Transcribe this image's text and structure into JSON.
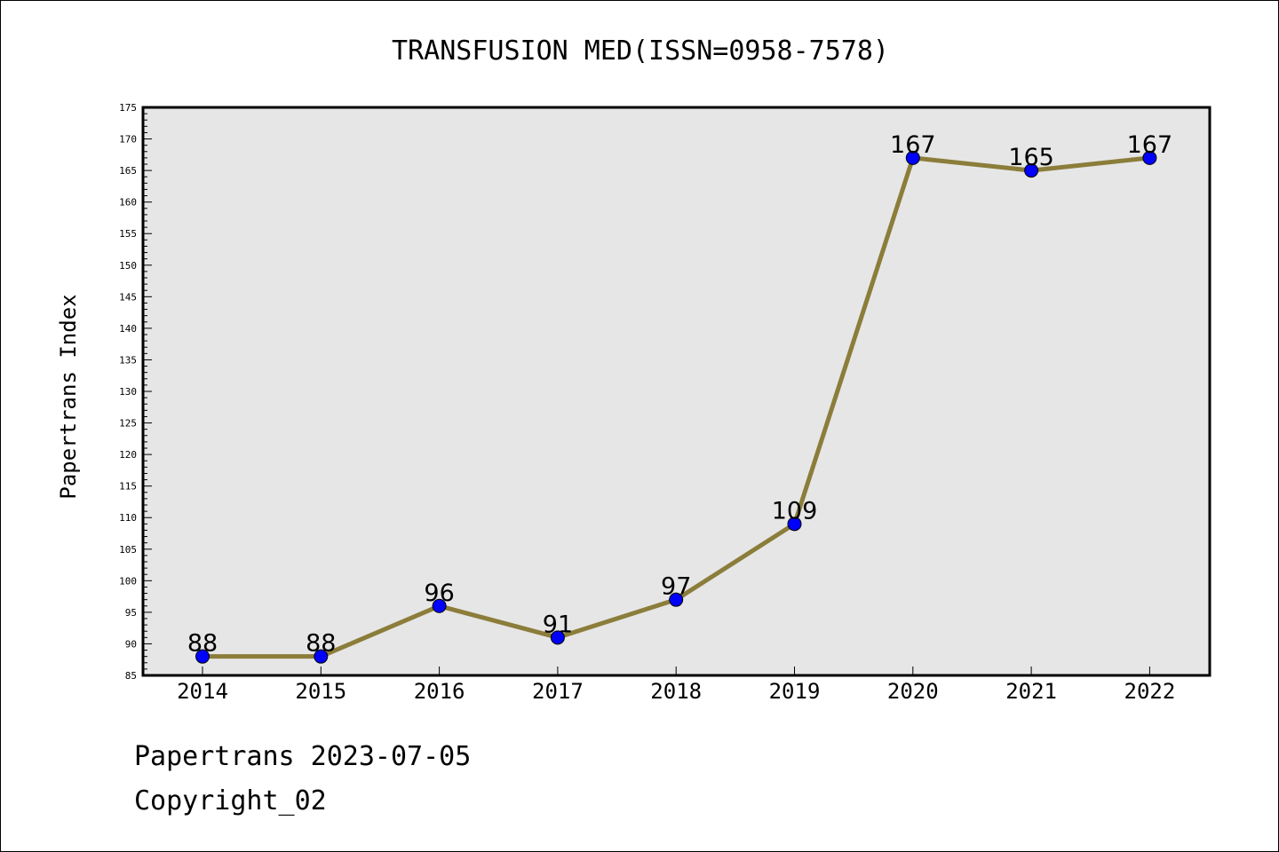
{
  "chart_data": {
    "type": "line",
    "title": "TRANSFUSION MED(ISSN=0958-7578)",
    "xlabel": "",
    "ylabel": "Papertrans Index",
    "categories": [
      "2014",
      "2015",
      "2016",
      "2017",
      "2018",
      "2019",
      "2020",
      "2021",
      "2022"
    ],
    "series": [
      {
        "values": [
          88,
          88,
          96,
          91,
          97,
          109,
          167,
          165,
          167
        ]
      }
    ],
    "data_labels": [
      "88",
      "88",
      "96",
      "91",
      "97",
      "109",
      "167",
      "165",
      "167"
    ],
    "ylim": [
      85,
      175
    ],
    "yticks": [
      85,
      90,
      95,
      100,
      105,
      110,
      115,
      120,
      125,
      130,
      135,
      140,
      145,
      150,
      155,
      160,
      165,
      170,
      175
    ],
    "grid": false,
    "line_color": "#8b7d3a",
    "marker_color": "#0000ff",
    "plot_background": "#e6e6e6"
  },
  "footer": {
    "line1": "Papertrans 2023-07-05",
    "line2": "Copyright_02"
  }
}
